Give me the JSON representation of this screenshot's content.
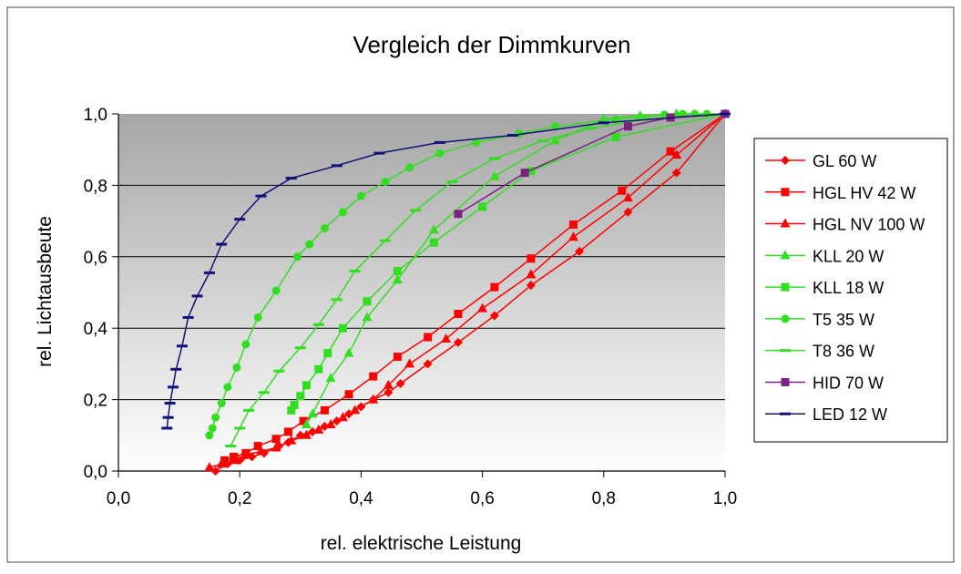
{
  "chart_data": {
    "type": "line",
    "title": "Vergleich der Dimmkurven",
    "xlabel": "rel. elektrische Leistung",
    "ylabel": "rel. Lichtausbeute",
    "xlim": [
      0,
      1
    ],
    "ylim": [
      0,
      1
    ],
    "x_ticks": [
      "0,0",
      "0,2",
      "0,4",
      "0,6",
      "0,8",
      "1,0"
    ],
    "y_ticks": [
      "0,0",
      "0,2",
      "0,4",
      "0,6",
      "0,8",
      "1,0"
    ],
    "grid": "horizontal",
    "legend_position": "right",
    "plot_background": "gradient-gray",
    "series": [
      {
        "name": "GL 60 W",
        "color": "#ff0000",
        "marker": "diamond",
        "points": [
          [
            0.16,
            0.0
          ],
          [
            0.18,
            0.02
          ],
          [
            0.2,
            0.03
          ],
          [
            0.22,
            0.04
          ],
          [
            0.24,
            0.05
          ],
          [
            0.265,
            0.07
          ],
          [
            0.28,
            0.08
          ],
          [
            0.3,
            0.1
          ],
          [
            0.32,
            0.11
          ],
          [
            0.34,
            0.125
          ],
          [
            0.36,
            0.14
          ],
          [
            0.38,
            0.16
          ],
          [
            0.4,
            0.18
          ],
          [
            0.42,
            0.2
          ],
          [
            0.445,
            0.22
          ],
          [
            0.465,
            0.245
          ],
          [
            0.51,
            0.3
          ],
          [
            0.56,
            0.36
          ],
          [
            0.62,
            0.435
          ],
          [
            0.68,
            0.52
          ],
          [
            0.76,
            0.615
          ],
          [
            0.84,
            0.725
          ],
          [
            0.92,
            0.835
          ],
          [
            1.0,
            1.0
          ]
        ]
      },
      {
        "name": "HGL HV 42 W",
        "color": "#ff0000",
        "marker": "square",
        "points": [
          [
            0.175,
            0.03
          ],
          [
            0.19,
            0.04
          ],
          [
            0.21,
            0.05
          ],
          [
            0.23,
            0.07
          ],
          [
            0.26,
            0.09
          ],
          [
            0.28,
            0.11
          ],
          [
            0.305,
            0.14
          ],
          [
            0.34,
            0.17
          ],
          [
            0.38,
            0.215
          ],
          [
            0.42,
            0.265
          ],
          [
            0.46,
            0.32
          ],
          [
            0.51,
            0.375
          ],
          [
            0.56,
            0.44
          ],
          [
            0.62,
            0.515
          ],
          [
            0.68,
            0.595
          ],
          [
            0.75,
            0.69
          ],
          [
            0.83,
            0.785
          ],
          [
            0.91,
            0.895
          ],
          [
            1.0,
            1.0
          ]
        ]
      },
      {
        "name": "HGL NV 100 W",
        "color": "#ff0000",
        "marker": "triangle",
        "points": [
          [
            0.15,
            0.01
          ],
          [
            0.17,
            0.02
          ],
          [
            0.19,
            0.03
          ],
          [
            0.21,
            0.045
          ],
          [
            0.235,
            0.055
          ],
          [
            0.26,
            0.065
          ],
          [
            0.285,
            0.085
          ],
          [
            0.31,
            0.1
          ],
          [
            0.33,
            0.115
          ],
          [
            0.35,
            0.13
          ],
          [
            0.37,
            0.15
          ],
          [
            0.39,
            0.17
          ],
          [
            0.42,
            0.2
          ],
          [
            0.445,
            0.24
          ],
          [
            0.48,
            0.3
          ],
          [
            0.54,
            0.37
          ],
          [
            0.6,
            0.455
          ],
          [
            0.68,
            0.55
          ],
          [
            0.75,
            0.655
          ],
          [
            0.84,
            0.765
          ],
          [
            0.92,
            0.885
          ],
          [
            1.0,
            1.0
          ]
        ]
      },
      {
        "name": "KLL 20 W",
        "color": "#33dd22",
        "marker": "triangle",
        "points": [
          [
            0.31,
            0.13
          ],
          [
            0.32,
            0.16
          ],
          [
            0.35,
            0.26
          ],
          [
            0.38,
            0.33
          ],
          [
            0.41,
            0.43
          ],
          [
            0.46,
            0.535
          ],
          [
            0.52,
            0.675
          ],
          [
            0.62,
            0.825
          ],
          [
            0.72,
            0.925
          ],
          [
            0.8,
            0.985
          ],
          [
            0.86,
            0.995
          ],
          [
            0.92,
            1.0
          ],
          [
            1.0,
            1.0
          ]
        ]
      },
      {
        "name": "KLL 18 W",
        "color": "#33dd22",
        "marker": "square",
        "points": [
          [
            0.285,
            0.17
          ],
          [
            0.29,
            0.185
          ],
          [
            0.3,
            0.21
          ],
          [
            0.31,
            0.24
          ],
          [
            0.33,
            0.285
          ],
          [
            0.345,
            0.33
          ],
          [
            0.37,
            0.4
          ],
          [
            0.41,
            0.475
          ],
          [
            0.46,
            0.56
          ],
          [
            0.52,
            0.64
          ],
          [
            0.6,
            0.74
          ],
          [
            0.68,
            0.84
          ],
          [
            0.82,
            0.935
          ],
          [
            1.0,
            1.0
          ]
        ]
      },
      {
        "name": "T5 35 W",
        "color": "#33dd22",
        "marker": "circle",
        "points": [
          [
            0.15,
            0.1
          ],
          [
            0.155,
            0.12
          ],
          [
            0.16,
            0.15
          ],
          [
            0.17,
            0.19
          ],
          [
            0.18,
            0.235
          ],
          [
            0.195,
            0.29
          ],
          [
            0.21,
            0.355
          ],
          [
            0.23,
            0.43
          ],
          [
            0.26,
            0.505
          ],
          [
            0.295,
            0.6
          ],
          [
            0.315,
            0.635
          ],
          [
            0.34,
            0.68
          ],
          [
            0.37,
            0.725
          ],
          [
            0.4,
            0.77
          ],
          [
            0.44,
            0.81
          ],
          [
            0.48,
            0.85
          ],
          [
            0.53,
            0.89
          ],
          [
            0.59,
            0.92
          ],
          [
            0.66,
            0.945
          ],
          [
            0.72,
            0.965
          ],
          [
            0.82,
            0.985
          ],
          [
            0.9,
            0.998
          ],
          [
            0.93,
            1.0
          ],
          [
            0.95,
            1.0
          ],
          [
            0.97,
            1.0
          ]
        ]
      },
      {
        "name": "T8 36 W",
        "color": "#33dd22",
        "marker": "dash",
        "points": [
          [
            0.185,
            0.07
          ],
          [
            0.2,
            0.12
          ],
          [
            0.215,
            0.17
          ],
          [
            0.24,
            0.22
          ],
          [
            0.265,
            0.28
          ],
          [
            0.3,
            0.345
          ],
          [
            0.33,
            0.41
          ],
          [
            0.36,
            0.48
          ],
          [
            0.39,
            0.56
          ],
          [
            0.44,
            0.645
          ],
          [
            0.49,
            0.73
          ],
          [
            0.55,
            0.81
          ],
          [
            0.62,
            0.875
          ],
          [
            0.7,
            0.925
          ],
          [
            0.78,
            0.96
          ],
          [
            0.87,
            0.985
          ],
          [
            1.0,
            1.0
          ]
        ]
      },
      {
        "name": "HID 70 W",
        "color": "#7b2182",
        "marker": "square",
        "points": [
          [
            0.56,
            0.72
          ],
          [
            0.67,
            0.835
          ],
          [
            0.84,
            0.965
          ],
          [
            0.91,
            0.99
          ],
          [
            1.0,
            1.0
          ]
        ]
      },
      {
        "name": "LED 12 W",
        "color": "#111177",
        "marker": "dash",
        "points": [
          [
            0.08,
            0.12
          ],
          [
            0.082,
            0.15
          ],
          [
            0.085,
            0.19
          ],
          [
            0.09,
            0.235
          ],
          [
            0.095,
            0.285
          ],
          [
            0.105,
            0.35
          ],
          [
            0.115,
            0.43
          ],
          [
            0.13,
            0.49
          ],
          [
            0.15,
            0.555
          ],
          [
            0.17,
            0.635
          ],
          [
            0.2,
            0.705
          ],
          [
            0.235,
            0.77
          ],
          [
            0.285,
            0.82
          ],
          [
            0.36,
            0.855
          ],
          [
            0.43,
            0.89
          ],
          [
            0.53,
            0.92
          ],
          [
            0.65,
            0.94
          ],
          [
            0.8,
            0.975
          ],
          [
            1.0,
            1.0
          ]
        ]
      }
    ]
  }
}
